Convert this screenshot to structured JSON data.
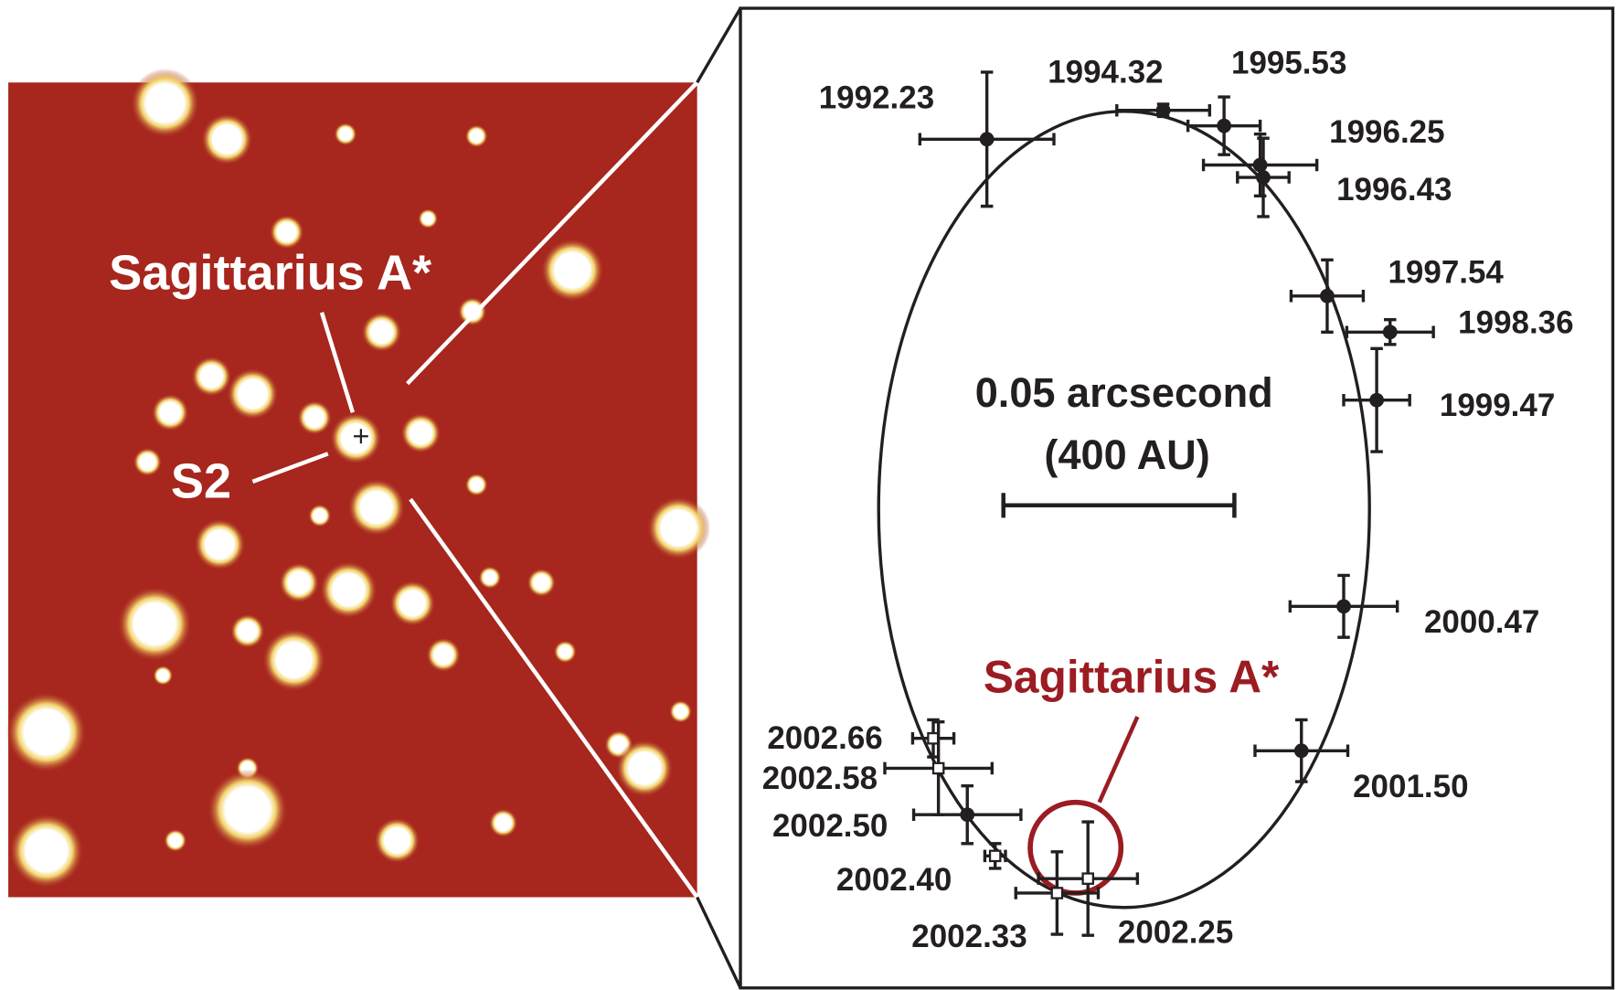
{
  "left_panel": {
    "target_label": "Sagittarius A*",
    "star_label": "S2"
  },
  "right_panel": {
    "scale_bar": {
      "line1": "0.05 arcsecond",
      "line2": "(400 AU)"
    },
    "target_label": "Sagittarius A*",
    "epochs": [
      "1992.23",
      "1994.32",
      "1995.53",
      "1996.25",
      "1996.43",
      "1997.54",
      "1998.36",
      "1999.47",
      "2000.47",
      "2001.50",
      "2002.66",
      "2002.58",
      "2002.50",
      "2002.40",
      "2002.33",
      "2002.25"
    ]
  }
}
